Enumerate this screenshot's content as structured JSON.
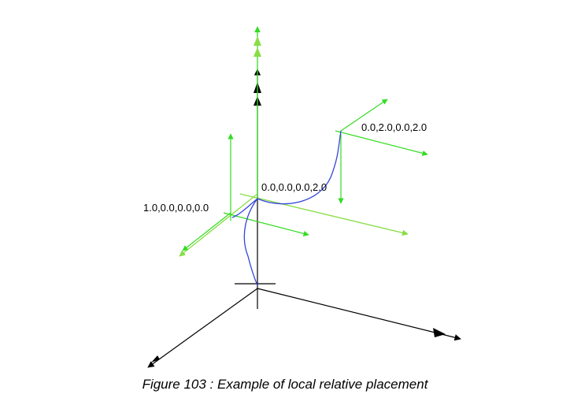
{
  "figure": {
    "caption": "Figure 103 : Example of local relative placement",
    "labels": {
      "point_a": "1.0,0.0,0.0,0.0",
      "point_b": "0.0,0.0,0.0,2.0",
      "point_c": "0.0,2.0,0.0,2.0"
    }
  },
  "colors": {
    "global_axes": "#000000",
    "green_axes": "#33dd22",
    "light_green_axes": "#88dd44",
    "curve": "#3344dd"
  }
}
